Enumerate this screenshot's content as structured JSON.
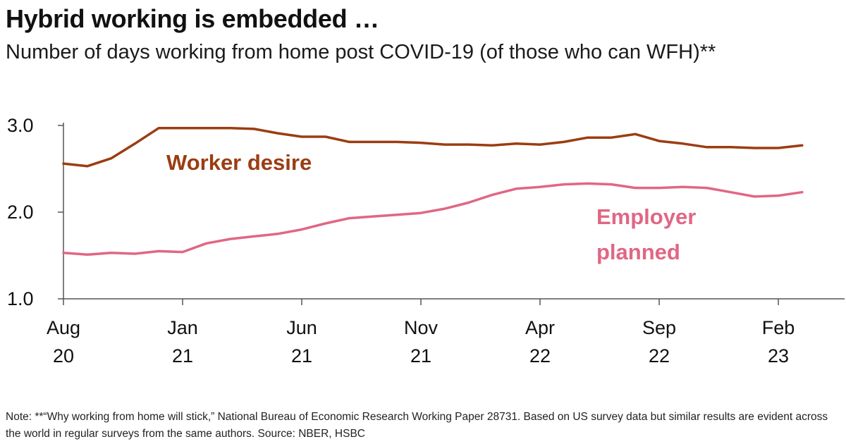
{
  "header": {
    "title": "Hybrid working is embedded …",
    "subtitle": "Number of days working from home post COVID-19 (of those who can WFH)**"
  },
  "footer": {
    "note": "Note: **“Why working from home will stick,” National Bureau of Economic Research Working Paper 28731. Based on US survey data but similar results are evident across the world in regular surveys from the same authors. Source: NBER, HSBC"
  },
  "chart_data": {
    "type": "line",
    "x_start": "2020-08",
    "x_end": "2023-03",
    "x": [
      "2020-08",
      "2020-09",
      "2020-10",
      "2020-11",
      "2020-12",
      "2021-01",
      "2021-02",
      "2021-03",
      "2021-04",
      "2021-05",
      "2021-06",
      "2021-07",
      "2021-08",
      "2021-09",
      "2021-10",
      "2021-11",
      "2021-12",
      "2022-01",
      "2022-02",
      "2022-03",
      "2022-04",
      "2022-05",
      "2022-06",
      "2022-07",
      "2022-08",
      "2022-09",
      "2022-10",
      "2022-11",
      "2022-12",
      "2023-01",
      "2023-02",
      "2023-03"
    ],
    "xticks": [
      {
        "month": "Aug",
        "year": "20",
        "at": "2020-08"
      },
      {
        "month": "Jan",
        "year": "21",
        "at": "2021-01"
      },
      {
        "month": "Jun",
        "year": "21",
        "at": "2021-06"
      },
      {
        "month": "Nov",
        "year": "21",
        "at": "2021-11"
      },
      {
        "month": "Apr",
        "year": "22",
        "at": "2022-04"
      },
      {
        "month": "Sep",
        "year": "22",
        "at": "2022-09"
      },
      {
        "month": "Feb",
        "year": "23",
        "at": "2023-02"
      }
    ],
    "yticks": [
      "1.0",
      "2.0",
      "3.0"
    ],
    "ylim": [
      1.0,
      3.0
    ],
    "grid": false,
    "series": [
      {
        "name": "Worker desire",
        "color": "#9b3d12",
        "values": [
          2.56,
          2.53,
          2.62,
          2.79,
          2.97,
          2.97,
          2.97,
          2.97,
          2.96,
          2.91,
          2.87,
          2.87,
          2.81,
          2.81,
          2.81,
          2.8,
          2.78,
          2.78,
          2.77,
          2.79,
          2.78,
          2.81,
          2.86,
          2.86,
          2.9,
          2.82,
          2.79,
          2.75,
          2.75,
          2.74,
          2.74,
          2.77
        ]
      },
      {
        "name": "Employer planned",
        "color": "#e06784",
        "values": [
          1.53,
          1.51,
          1.53,
          1.52,
          1.55,
          1.54,
          1.64,
          1.69,
          1.72,
          1.75,
          1.8,
          1.87,
          1.93,
          1.95,
          1.97,
          1.99,
          2.04,
          2.11,
          2.2,
          2.27,
          2.29,
          2.32,
          2.33,
          2.32,
          2.28,
          2.28,
          2.29,
          2.28,
          2.23,
          2.18,
          2.19,
          2.23
        ]
      }
    ],
    "labels": {
      "worker_line": "Worker desire",
      "employer_line1": "Employer",
      "employer_line2": "planned"
    }
  }
}
